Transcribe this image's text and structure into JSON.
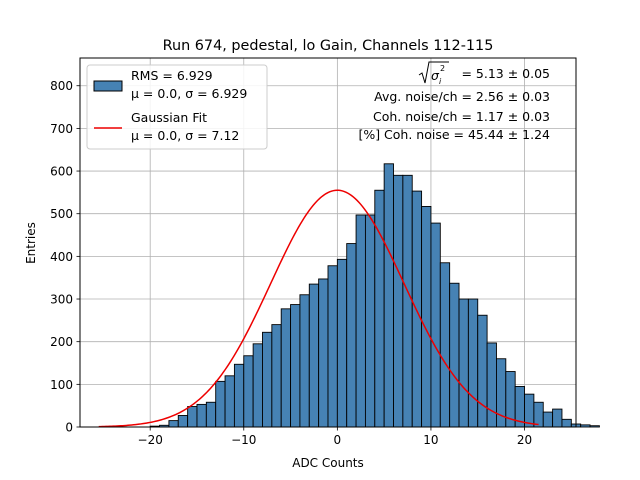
{
  "chart_data": {
    "type": "bar",
    "title": "Run 674, pedestal, lo Gain, Channels 112-115",
    "xlabel": "ADC Counts",
    "ylabel": "Entries",
    "xlim": [
      -27.5,
      25.5
    ],
    "ylim": [
      0,
      865
    ],
    "grid": true,
    "x_ticks": [
      -20,
      -10,
      0,
      10,
      20
    ],
    "x_tick_labels": [
      "−20",
      "−10",
      "0",
      "10",
      "20"
    ],
    "y_ticks": [
      0,
      100,
      200,
      300,
      400,
      500,
      600,
      700,
      800
    ],
    "y_tick_labels": [
      "0",
      "100",
      "200",
      "300",
      "400",
      "500",
      "600",
      "700",
      "800"
    ],
    "bin_width": 1.0,
    "bin_edges_start": -20.0,
    "counts": [
      2,
      4,
      15,
      27,
      48,
      53,
      58,
      107,
      120,
      147,
      167,
      195,
      222,
      240,
      277,
      287,
      310,
      335,
      347,
      378,
      393,
      430,
      497,
      497,
      555,
      617,
      590,
      590,
      553,
      517,
      478,
      385,
      337,
      300,
      300,
      262,
      197,
      160,
      130,
      95,
      77,
      58,
      35,
      42,
      18,
      7,
      5,
      3
    ],
    "bar_color": "#4682b4",
    "fit": {
      "label": "Gaussian Fit",
      "mu": 0.0,
      "sigma": 7.12,
      "amplitude": 555,
      "x_range": [
        -25.5,
        21.5
      ],
      "color": "#ee0000"
    },
    "legend": {
      "position": "upper left",
      "hist_line1": "RMS = 6.929",
      "hist_line2": "μ = 0.0, σ = 6.929",
      "fit_line1": "Gaussian Fit",
      "fit_line2": "μ = 0.0, σ = 7.12"
    },
    "annotations": {
      "sqrt_value": " = 5.13 ± 0.05",
      "avg_noise": "Avg. noise/ch = 2.56 ± 0.03",
      "coh_noise": "Coh. noise/ch = 1.17 ± 0.03",
      "pct_coh": "[%] Coh. noise = 45.44 ± 1.24"
    }
  }
}
